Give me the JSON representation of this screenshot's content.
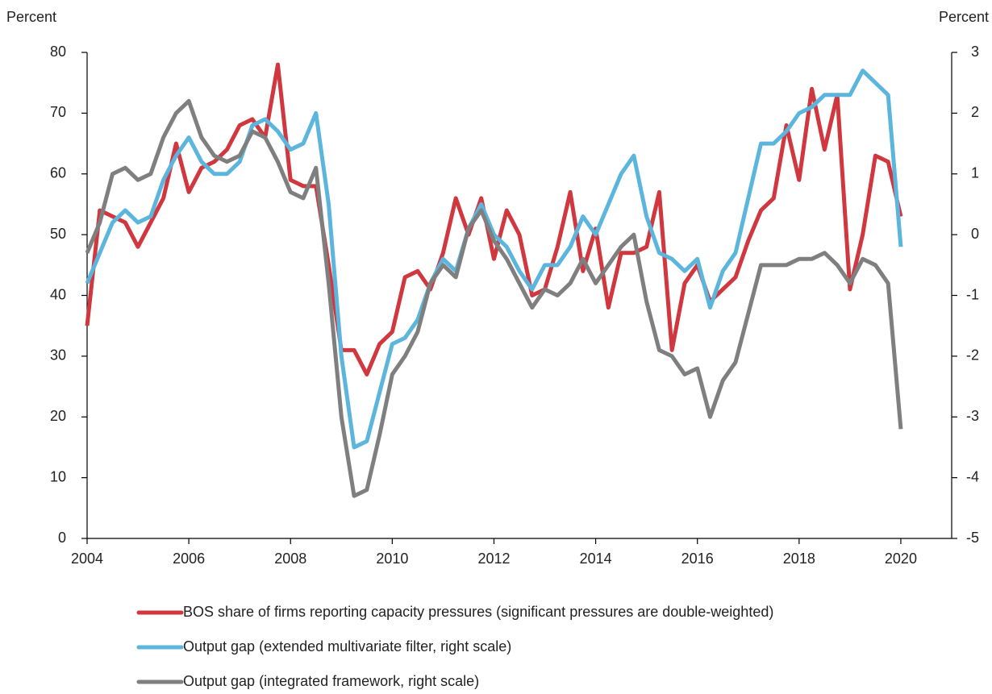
{
  "chart_data": {
    "type": "line",
    "y_label": "Percent",
    "y2_label": "Percent",
    "x": [
      2004,
      2004.25,
      2004.5,
      2004.75,
      2005,
      2005.25,
      2005.5,
      2005.75,
      2006,
      2006.25,
      2006.5,
      2006.75,
      2007,
      2007.25,
      2007.5,
      2007.75,
      2008,
      2008.25,
      2008.5,
      2008.75,
      2009,
      2009.25,
      2009.5,
      2009.75,
      2010,
      2010.25,
      2010.5,
      2010.75,
      2011,
      2011.25,
      2011.5,
      2011.75,
      2012,
      2012.25,
      2012.5,
      2012.75,
      2013,
      2013.25,
      2013.5,
      2013.75,
      2014,
      2014.25,
      2014.5,
      2014.75,
      2015,
      2015.25,
      2015.5,
      2015.75,
      2016,
      2016.25,
      2016.5,
      2016.75,
      2017,
      2017.25,
      2017.5,
      2017.75,
      2018,
      2018.25,
      2018.5,
      2018.75,
      2019,
      2019.25,
      2019.5,
      2019.75,
      2020
    ],
    "series": [
      {
        "name": "BOS share of firms reporting capacity pressures (significant pressures are double-weighted)",
        "color": "#d0373e",
        "axis": "y",
        "values": [
          35,
          54,
          53,
          52,
          48,
          52,
          56,
          65,
          57,
          61,
          62,
          64,
          68,
          69,
          66,
          78,
          59,
          58,
          58,
          45,
          31,
          31,
          27,
          32,
          34,
          43,
          44,
          41,
          47,
          56,
          50,
          56,
          46,
          54,
          50,
          40,
          41,
          48,
          57,
          44,
          51,
          38,
          47,
          47,
          48,
          57,
          31,
          42,
          45,
          39,
          41,
          43,
          49,
          54,
          56,
          68,
          59,
          74,
          64,
          73,
          41,
          50,
          63,
          62,
          53
        ]
      },
      {
        "name": "Output gap (extended multivariate filter, right scale)",
        "color": "#5bb5dc",
        "axis": "y2",
        "values": [
          -0.8,
          -0.3,
          0.2,
          0.4,
          0.2,
          0.3,
          0.9,
          1.3,
          1.6,
          1.2,
          1.0,
          1.0,
          1.2,
          1.8,
          1.9,
          1.7,
          1.4,
          1.5,
          2.0,
          0.5,
          -2.0,
          -3.5,
          -3.4,
          -2.6,
          -1.8,
          -1.7,
          -1.4,
          -0.8,
          -0.4,
          -0.6,
          0.1,
          0.5,
          0,
          -0.2,
          -0.6,
          -0.9,
          -0.5,
          -0.5,
          -0.2,
          0.3,
          0,
          0.5,
          1.0,
          1.3,
          0.3,
          -0.3,
          -0.4,
          -0.6,
          -0.4,
          -1.2,
          -0.6,
          -0.3,
          0.6,
          1.5,
          1.5,
          1.7,
          2.0,
          2.1,
          2.3,
          2.3,
          2.3,
          2.7,
          2.5,
          2.3,
          -0.2
        ]
      },
      {
        "name": "Output gap (integrated framework, right scale)",
        "color": "#7f7f7f",
        "axis": "y2",
        "values": [
          -0.3,
          0.2,
          1.0,
          1.1,
          0.9,
          1.0,
          1.6,
          2.0,
          2.2,
          1.6,
          1.3,
          1.2,
          1.3,
          1.7,
          1.6,
          1.2,
          0.7,
          0.6,
          1.1,
          -0.8,
          -3.0,
          -4.3,
          -4.2,
          -3.3,
          -2.3,
          -2.0,
          -1.6,
          -0.8,
          -0.5,
          -0.7,
          0.1,
          0.4,
          -0.1,
          -0.4,
          -0.8,
          -1.2,
          -0.9,
          -1.0,
          -0.8,
          -0.4,
          -0.8,
          -0.5,
          -0.2,
          0,
          -1.1,
          -1.9,
          -2.0,
          -2.3,
          -2.2,
          -3.0,
          -2.4,
          -2.1,
          -1.3,
          -0.5,
          -0.5,
          -0.5,
          -0.4,
          -0.4,
          -0.3,
          -0.5,
          -0.8,
          -0.4,
          -0.5,
          -0.8,
          -3.2
        ]
      }
    ],
    "xlim": [
      2004,
      2021
    ],
    "xticks": [
      2004,
      2006,
      2008,
      2010,
      2012,
      2014,
      2016,
      2018,
      2020
    ],
    "ylim": [
      0,
      80
    ],
    "yticks": [
      0,
      10,
      20,
      30,
      40,
      50,
      60,
      70,
      80
    ],
    "y2lim": [
      -5,
      3
    ],
    "y2ticks": [
      -5,
      -4,
      -3,
      -2,
      -1,
      0,
      1,
      2,
      3
    ],
    "grid": false
  }
}
